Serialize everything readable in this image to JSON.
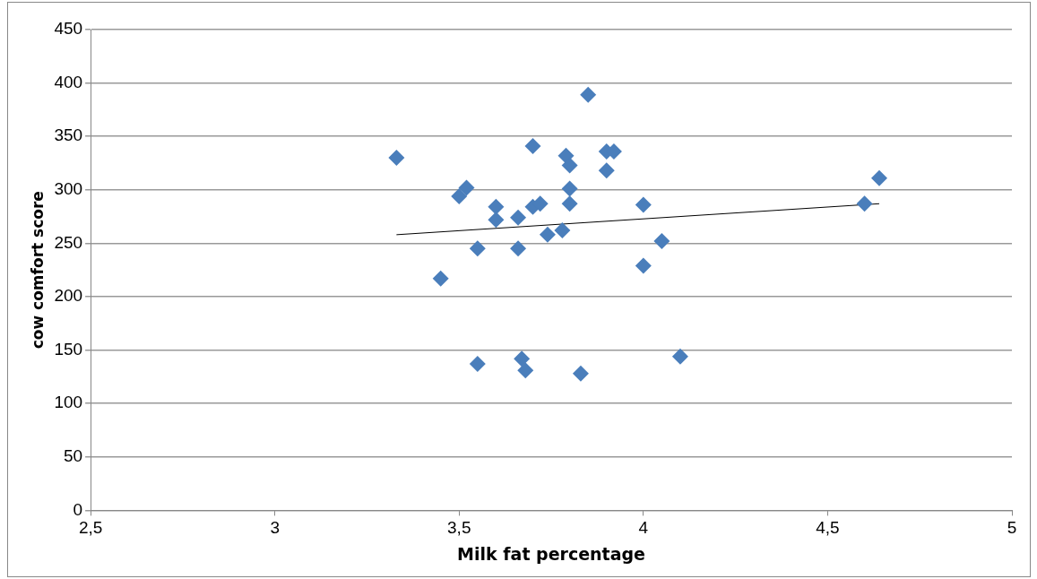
{
  "chart_data": {
    "type": "scatter",
    "xlabel": "Milk fat percentage",
    "ylabel": "cow comfort score",
    "xlim": [
      2.5,
      5
    ],
    "xticks": [
      {
        "value": 2.5,
        "label": "2,5"
      },
      3,
      {
        "value": 3.5,
        "label": "3,5"
      },
      4,
      {
        "value": 4.5,
        "label": "4,5"
      },
      5
    ],
    "ylim": [
      0,
      450
    ],
    "yticks": [
      0,
      50,
      100,
      150,
      200,
      250,
      300,
      350,
      400,
      450
    ],
    "grid": "y",
    "legend": false,
    "marker": "diamond",
    "series": [
      {
        "color": "#4a7ebb",
        "x": [
          3.33,
          3.45,
          3.5,
          3.52,
          3.55,
          3.55,
          3.6,
          3.6,
          3.66,
          3.66,
          3.7,
          3.7,
          3.72,
          3.67,
          3.68,
          3.74,
          3.78,
          3.79,
          3.8,
          3.8,
          3.8,
          3.83,
          3.85,
          3.9,
          3.92,
          3.9,
          4.0,
          4.0,
          4.05,
          4.1,
          4.6,
          4.64
        ],
        "values": [
          330,
          217,
          294,
          302,
          245,
          137,
          284,
          272,
          274,
          245,
          341,
          284,
          287,
          142,
          131,
          258,
          262,
          332,
          323,
          301,
          287,
          128,
          389,
          336,
          336,
          318,
          286,
          229,
          252,
          144,
          287,
          311
        ]
      },
      {
        "type": "line",
        "color": "#000000",
        "marker": "none",
        "x": [
          3.33,
          4.64
        ],
        "values": [
          258,
          287
        ]
      }
    ]
  }
}
